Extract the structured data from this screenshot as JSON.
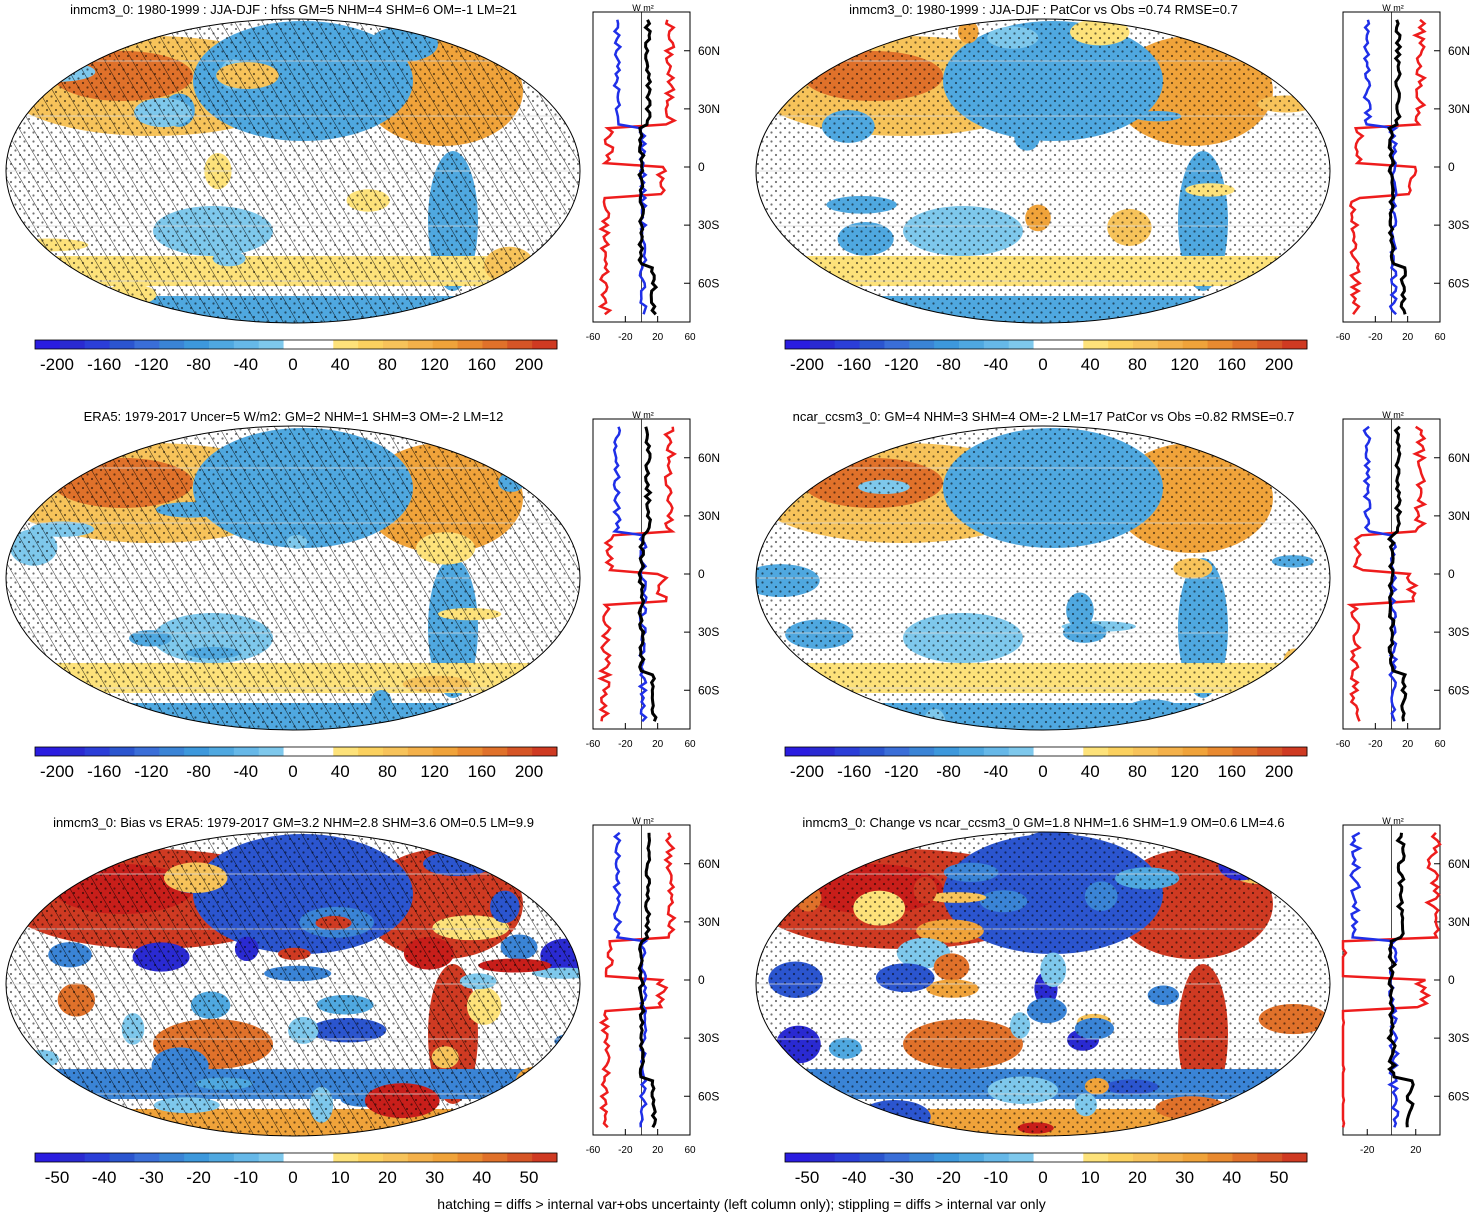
{
  "figure": {
    "footer": "hatching = diffs > internal var+obs uncertainty (left column only); stippling = diffs > internal var only"
  },
  "colors": {
    "land_warm": [
      "#fde27a",
      "#f7c35a",
      "#f0a33a",
      "#e0712a",
      "#cf3a22",
      "#c81e1a"
    ],
    "ocean_cool": [
      "#7ec8ec",
      "#4fa8e0",
      "#3a84d6",
      "#2b55cf",
      "#2a2ad2"
    ],
    "profile_red": "#ee1c1c",
    "profile_blue": "#1f2fe8",
    "profile_black": "#000000"
  },
  "chart_data": [
    {
      "type": "heatmap",
      "title": "inmcm3_0: 1980-1999 : JJA-DJF : hfss GM=5 NHM=4 SHM=6 OM=-1 LM=21",
      "colorbar_labels": [
        "-200",
        "-160",
        "-120",
        "-80",
        "-40",
        "0",
        "40",
        "80",
        "120",
        "160",
        "200"
      ],
      "colorbar_levels": [
        -200,
        -180,
        -160,
        -140,
        -120,
        -100,
        -80,
        -60,
        -40,
        -20,
        -10,
        10,
        20,
        40,
        60,
        80,
        100,
        120,
        140,
        160,
        180,
        200
      ],
      "hatching": true,
      "stippling": true,
      "profile": {
        "unit": "W m²",
        "x_ticks": [
          "-60",
          "-20",
          "20",
          "60"
        ],
        "xlim": [
          -60,
          60
        ],
        "y_ticks": [
          "60N",
          "30N",
          "0",
          "30S",
          "60S"
        ],
        "ylim": [
          -80,
          80
        ]
      }
    },
    {
      "type": "heatmap",
      "title": "inmcm3_0: 1980-1999 : JJA-DJF : PatCor vs Obs =0.74 RMSE=0.7",
      "colorbar_labels": [
        "-200",
        "-160",
        "-120",
        "-80",
        "-40",
        "0",
        "40",
        "80",
        "120",
        "160",
        "200"
      ],
      "colorbar_levels": [
        -200,
        -180,
        -160,
        -140,
        -120,
        -100,
        -80,
        -60,
        -40,
        -20,
        -10,
        10,
        20,
        40,
        60,
        80,
        100,
        120,
        140,
        160,
        180,
        200
      ],
      "hatching": false,
      "stippling": true,
      "profile": {
        "unit": "W m²",
        "x_ticks": [
          "-60",
          "-20",
          "20",
          "60"
        ],
        "xlim": [
          -60,
          60
        ],
        "y_ticks": [
          "60N",
          "30N",
          "0",
          "30S",
          "60S"
        ],
        "ylim": [
          -80,
          80
        ]
      }
    },
    {
      "type": "heatmap",
      "title": "ERA5: 1979-2017 Uncer=5 W/m2: GM=2 NHM=1 SHM=3 OM=-2 LM=12",
      "colorbar_labels": [
        "-200",
        "-160",
        "-120",
        "-80",
        "-40",
        "0",
        "40",
        "80",
        "120",
        "160",
        "200"
      ],
      "colorbar_levels": [
        -200,
        -180,
        -160,
        -140,
        -120,
        -100,
        -80,
        -60,
        -40,
        -20,
        -10,
        10,
        20,
        40,
        60,
        80,
        100,
        120,
        140,
        160,
        180,
        200
      ],
      "hatching": true,
      "stippling": true,
      "profile": {
        "unit": "W m²",
        "x_ticks": [
          "-60",
          "-20",
          "20",
          "60"
        ],
        "xlim": [
          -60,
          60
        ],
        "y_ticks": [
          "60N",
          "30N",
          "0",
          "30S",
          "60S"
        ],
        "ylim": [
          -80,
          80
        ]
      }
    },
    {
      "type": "heatmap",
      "title": "ncar_ccsm3_0: GM=4 NHM=3 SHM=4 OM=-2 LM=17 PatCor vs Obs =0.82 RMSE=0.7",
      "colorbar_labels": [
        "-200",
        "-160",
        "-120",
        "-80",
        "-40",
        "0",
        "40",
        "80",
        "120",
        "160",
        "200"
      ],
      "colorbar_levels": [
        -200,
        -180,
        -160,
        -140,
        -120,
        -100,
        -80,
        -60,
        -40,
        -20,
        -10,
        10,
        20,
        40,
        60,
        80,
        100,
        120,
        140,
        160,
        180,
        200
      ],
      "hatching": false,
      "stippling": true,
      "profile": {
        "unit": "W m²",
        "x_ticks": [
          "-60",
          "-20",
          "20",
          "60"
        ],
        "xlim": [
          -60,
          60
        ],
        "y_ticks": [
          "60N",
          "30N",
          "0",
          "30S",
          "60S"
        ],
        "ylim": [
          -80,
          80
        ]
      }
    },
    {
      "type": "heatmap",
      "title": "inmcm3_0: Bias vs ERA5: 1979-2017 GM=3.2 NHM=2.8 SHM=3.6 OM=0.5 LM=9.9",
      "colorbar_labels": [
        "-50",
        "-40",
        "-30",
        "-20",
        "-10",
        "0",
        "10",
        "20",
        "30",
        "40",
        "50"
      ],
      "colorbar_levels": [
        -55,
        -50,
        -45,
        -40,
        -35,
        -30,
        -25,
        -20,
        -15,
        -10,
        -5,
        5,
        10,
        15,
        20,
        25,
        30,
        35,
        40,
        45,
        50,
        55
      ],
      "hatching": true,
      "stippling": true,
      "profile": {
        "unit": "W m²",
        "x_ticks": [
          "-60",
          "-20",
          "20",
          "60"
        ],
        "xlim": [
          -60,
          60
        ],
        "y_ticks": [
          "60N",
          "30N",
          "0",
          "30S",
          "60S"
        ],
        "ylim": [
          -80,
          80
        ]
      }
    },
    {
      "type": "heatmap",
      "title": "inmcm3_0: Change vs ncar_ccsm3_0 GM=1.8 NHM=1.6 SHM=1.9 OM=0.6 LM=4.6",
      "colorbar_labels": [
        "-50",
        "-40",
        "-30",
        "-20",
        "-10",
        "0",
        "10",
        "20",
        "30",
        "40",
        "50"
      ],
      "colorbar_levels": [
        -55,
        -50,
        -45,
        -40,
        -35,
        -30,
        -25,
        -20,
        -15,
        -10,
        -5,
        5,
        10,
        15,
        20,
        25,
        30,
        35,
        40,
        45,
        50,
        55
      ],
      "hatching": false,
      "stippling": true,
      "profile": {
        "unit": "W m²",
        "x_ticks": [
          "-20",
          "20"
        ],
        "xlim": [
          -40,
          40
        ],
        "y_ticks": [
          "60N",
          "30N",
          "0",
          "30S",
          "60S"
        ],
        "ylim": [
          -80,
          80
        ]
      }
    }
  ]
}
